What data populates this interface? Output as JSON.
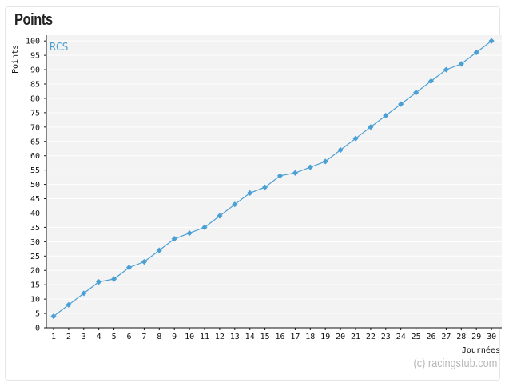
{
  "title": "Points",
  "watermark": "(c) racingstub.com",
  "colors": {
    "line": "#4a9fd4",
    "plot_bg": "#f3f3f3",
    "grid": "#ffffff",
    "axis": "#111111"
  },
  "chart_data": {
    "type": "line",
    "title": "Points",
    "xlabel": "Journées",
    "ylabel": "Points",
    "x": [
      1,
      2,
      3,
      4,
      5,
      6,
      7,
      8,
      9,
      10,
      11,
      12,
      13,
      14,
      15,
      16,
      17,
      18,
      19,
      20,
      21,
      22,
      23,
      24,
      25,
      26,
      27,
      28,
      29,
      30
    ],
    "yticks": [
      0,
      5,
      10,
      15,
      20,
      25,
      30,
      35,
      40,
      45,
      50,
      55,
      60,
      65,
      70,
      75,
      80,
      85,
      90,
      95,
      100
    ],
    "ylim": [
      0,
      102
    ],
    "series": [
      {
        "name": "RCS",
        "values": [
          4,
          8,
          12,
          16,
          17,
          21,
          23,
          27,
          31,
          33,
          35,
          39,
          43,
          47,
          49,
          53,
          54,
          56,
          58,
          62,
          66,
          70,
          74,
          78,
          82,
          86,
          90,
          92,
          96,
          100
        ]
      }
    ],
    "grid": true,
    "legend": "top-left"
  }
}
